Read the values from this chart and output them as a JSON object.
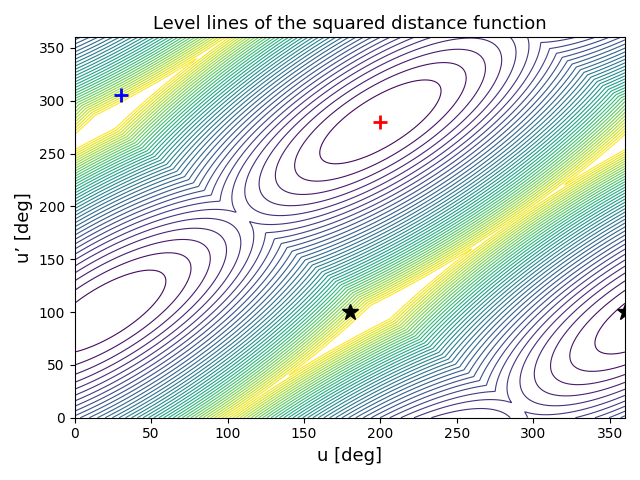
{
  "title": "Level lines of the squared distance function",
  "xlabel": "u [deg]",
  "ylabel": "u’ [deg]",
  "xlim": [
    0,
    360
  ],
  "ylim": [
    0,
    360
  ],
  "xticks": [
    0,
    50,
    100,
    150,
    200,
    250,
    300,
    350
  ],
  "yticks": [
    0,
    50,
    100,
    150,
    200,
    250,
    300,
    350
  ],
  "red_plus": [
    200,
    280
  ],
  "blue_plus": [
    30,
    305
  ],
  "star1": [
    180,
    100
  ],
  "star2": [
    360,
    100
  ],
  "n_levels": 40,
  "colormap": "viridis",
  "grid_n": 500
}
